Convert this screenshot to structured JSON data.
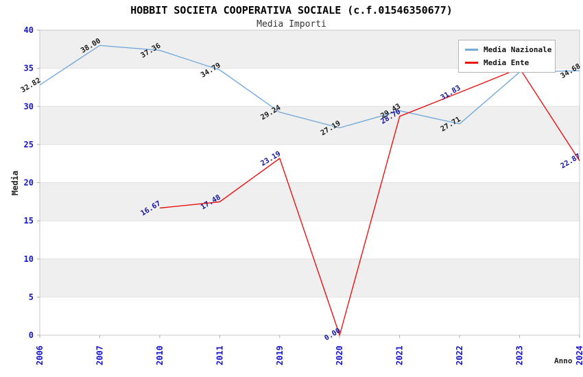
{
  "title": "HOBBIT SOCIETA COOPERATIVA SOCIALE (c.f.01546350677)",
  "subtitle": "Media Importi",
  "chart_data": {
    "type": "line",
    "title": "HOBBIT SOCIETA COOPERATIVA SOCIALE (c.f.01546350677)",
    "subtitle": "Media Importi",
    "xlabel": "Anno",
    "ylabel": "Media",
    "ylim": [
      0,
      40
    ],
    "yticks": [
      0,
      5,
      10,
      15,
      20,
      25,
      30,
      35,
      40
    ],
    "grid": "horizontal-alternating-bands",
    "legend_position": "top-right",
    "categories": [
      "2006",
      "2007",
      "2010",
      "2011",
      "2019",
      "2020",
      "2021",
      "2022",
      "2023",
      "2024"
    ],
    "series": [
      {
        "name": "Media Nazionale",
        "color": "#74aadc",
        "label_color": "#1a1a1a",
        "values": [
          32.82,
          38.0,
          37.36,
          34.79,
          29.24,
          27.19,
          29.43,
          27.71,
          34.5,
          34.68
        ],
        "point_labels": [
          "32.82",
          "38.00",
          "37.36",
          "34.79",
          "29.24",
          "27.19",
          "29.43",
          "27.71",
          "",
          "34.68"
        ]
      },
      {
        "name": "Media Ente",
        "color": "#ee1111",
        "label_color": "#15159b",
        "values": [
          null,
          null,
          16.67,
          17.48,
          23.19,
          0.0,
          28.7,
          31.83,
          35.0,
          22.87
        ],
        "point_labels": [
          "",
          "",
          "16.67",
          "17.48",
          "23.19",
          "0.00",
          "28.70",
          "31.83",
          "",
          "22.87"
        ]
      }
    ],
    "styles": {
      "tick_label_color": "#1414cc",
      "band_color": "#efefef",
      "grid_color": "#e0e0e0",
      "border_color": "#c8c8c8",
      "background": "#ffffff"
    }
  }
}
